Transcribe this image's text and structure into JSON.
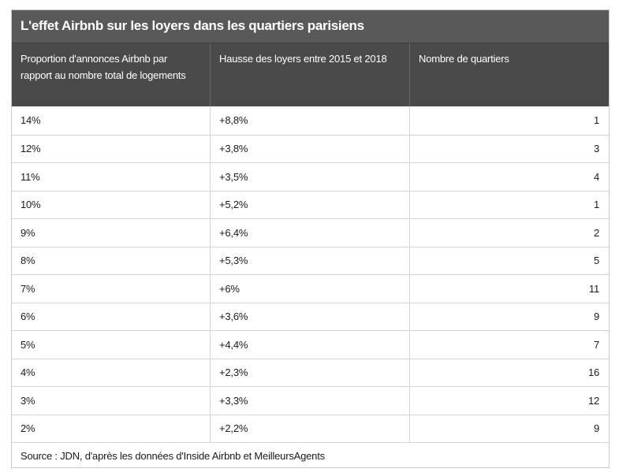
{
  "title": "L'effet Airbnb sur les loyers dans les quartiers parisiens",
  "chart_data": {
    "type": "table",
    "title": "L'effet Airbnb sur les loyers dans les quartiers parisiens",
    "columns": [
      "Proportion d'annonces Airbnb par rapport au nombre total de logements",
      "Hausse des loyers entre 2015 et 2018",
      "Nombre de quartiers"
    ],
    "rows": [
      [
        "14%",
        "+8,8%",
        "1"
      ],
      [
        "12%",
        "+3,8%",
        "3"
      ],
      [
        "11%",
        "+3,5%",
        "4"
      ],
      [
        "10%",
        "+5,2%",
        "1"
      ],
      [
        "9%",
        "+6,4%",
        "2"
      ],
      [
        "8%",
        "+5,3%",
        "5"
      ],
      [
        "7%",
        "+6%",
        "11"
      ],
      [
        "6%",
        "+3,6%",
        "9"
      ],
      [
        "5%",
        "+4,4%",
        "7"
      ],
      [
        "4%",
        "+2,3%",
        "16"
      ],
      [
        "3%",
        "+3,3%",
        "12"
      ],
      [
        "2%",
        "+2,2%",
        "9"
      ]
    ]
  },
  "source": "Source : JDN, d'après les données d'Inside Airbnb et MeilleursAgents"
}
